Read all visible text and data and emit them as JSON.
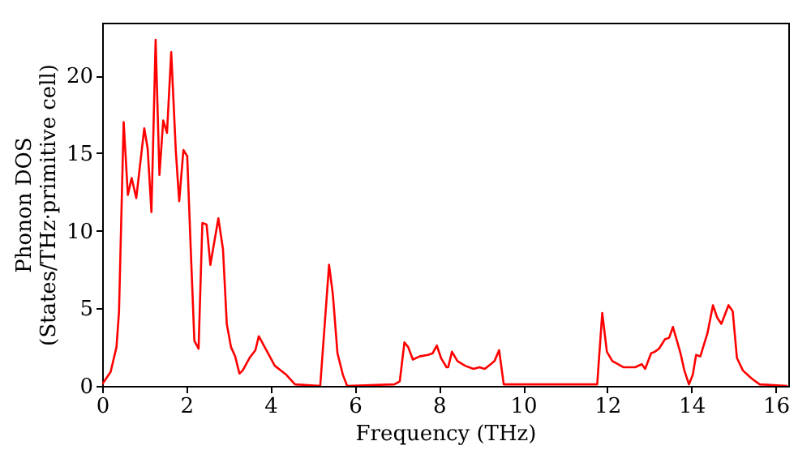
{
  "chart_data": {
    "type": "line",
    "xlabel": "Frequency (THz)",
    "ylabel": "Phonon DOS\n(States/THz·primitive cell)",
    "xlim": [
      0,
      16.3
    ],
    "ylim": [
      0,
      23.4
    ],
    "xticks": [
      0,
      2,
      4,
      6,
      8,
      10,
      12,
      14,
      16
    ],
    "yticks": [
      0,
      5,
      10,
      15,
      20
    ],
    "grid": false,
    "marker": "none",
    "line_style": "solid",
    "series": [
      {
        "color": "#ff0000",
        "x": [
          0,
          0.2,
          0.34,
          0.4,
          0.51,
          0.61,
          0.7,
          0.81,
          1.0,
          1.08,
          1.17,
          1.27,
          1.36,
          1.45,
          1.54,
          1.64,
          1.75,
          1.83,
          1.93,
          2.02,
          2.11,
          2.19,
          2.29,
          2.38,
          2.48,
          2.57,
          2.76,
          2.87,
          2.96,
          3.06,
          3.16,
          3.26,
          3.34,
          3.5,
          3.64,
          3.72,
          3.9,
          4.1,
          4.38,
          4.58,
          5.18,
          5.39,
          5.48,
          5.59,
          5.72,
          5.82,
          6.94,
          7.07,
          7.18,
          7.27,
          7.38,
          7.54,
          7.74,
          7.85,
          7.95,
          8.05,
          8.18,
          8.22,
          8.31,
          8.44,
          8.62,
          8.82,
          8.96,
          9.09,
          9.23,
          9.32,
          9.43,
          9.54,
          11.76,
          11.88,
          11.99,
          12.12,
          12.39,
          12.66,
          12.82,
          12.9,
          13.04,
          13.13,
          13.23,
          13.37,
          13.47,
          13.56,
          13.74,
          13.83,
          13.94,
          14.03,
          14.11,
          14.21,
          14.38,
          14.51,
          14.61,
          14.71,
          14.88,
          14.98,
          15.08,
          15.22,
          15.42,
          15.62,
          16.28
        ],
        "values": [
          0.1,
          0.9,
          2.5,
          4.8,
          17,
          12.3,
          13.4,
          12.1,
          16.6,
          15.3,
          11.2,
          22.3,
          13.6,
          17.1,
          16.3,
          21.5,
          15.1,
          11.9,
          15.2,
          14.8,
          8.4,
          2.9,
          2.4,
          10.5,
          10.4,
          7.8,
          10.8,
          8.8,
          4,
          2.5,
          1.9,
          0.8,
          1,
          1.8,
          2.3,
          3.2,
          2.3,
          1.3,
          0.7,
          0.1,
          0,
          7.8,
          5.9,
          2.1,
          0.7,
          0,
          0.1,
          0.3,
          2.8,
          2.5,
          1.7,
          1.9,
          2.0,
          2.1,
          2.6,
          1.8,
          1.2,
          1.2,
          2.2,
          1.6,
          1.3,
          1.1,
          1.2,
          1.1,
          1.4,
          1.6,
          2.3,
          0.1,
          0.1,
          4.7,
          2.2,
          1.6,
          1.2,
          1.2,
          1.4,
          1.1,
          2.1,
          2.2,
          2.4,
          3.0,
          3.1,
          3.8,
          2.1,
          1.0,
          0.1,
          0.7,
          2.0,
          1.9,
          3.4,
          5.2,
          4.4,
          4.0,
          5.2,
          4.8,
          1.8,
          1.0,
          0.5,
          0.1,
          0
        ]
      }
    ]
  }
}
